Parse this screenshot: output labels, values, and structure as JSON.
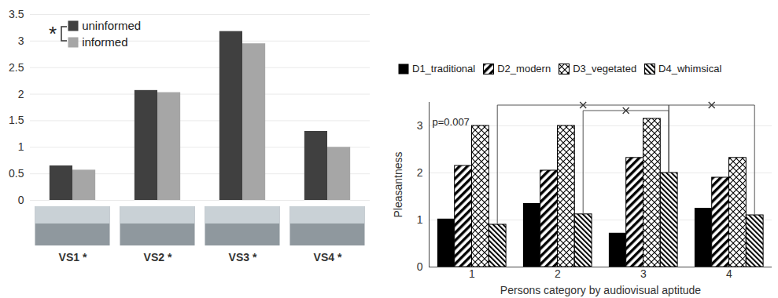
{
  "chart_data": [
    {
      "type": "bar",
      "categories": [
        "VS1 *",
        "VS2 *",
        "VS3 *",
        "VS4 *"
      ],
      "series": [
        {
          "name": "uninformed",
          "color": "#404040",
          "values": [
            0.65,
            2.07,
            3.18,
            1.3
          ]
        },
        {
          "name": "informed",
          "color": "#a6a6a6",
          "values": [
            0.57,
            2.03,
            2.95,
            1.0
          ]
        }
      ],
      "ylim": [
        0,
        3.5
      ],
      "yticks": [
        0,
        0.5,
        1,
        1.5,
        2,
        2.5,
        3,
        3.5
      ],
      "grid": true,
      "legend": "upper left",
      "annotations": [
        "*"
      ]
    },
    {
      "type": "bar",
      "x_label": "Persons category by audiovisual aptitude",
      "y_label": "Pleasantness",
      "categories": [
        "1",
        "2",
        "3",
        "4"
      ],
      "series": [
        {
          "name": "D1_traditional",
          "color": "#000000",
          "values": [
            1.02,
            1.35,
            0.72,
            1.25
          ]
        },
        {
          "name": "D2_modern",
          "color": "#000000",
          "values": [
            2.15,
            2.05,
            2.32,
            1.9
          ]
        },
        {
          "name": "D3_vegetated",
          "color": "#000000",
          "values": [
            3.0,
            3.0,
            3.15,
            2.32
          ]
        },
        {
          "name": "D4_whimsical",
          "color": "#000000",
          "values": [
            0.9,
            1.12,
            2.0,
            1.1
          ]
        }
      ],
      "ylim": [
        0,
        3.5
      ],
      "yticks": [
        0,
        1,
        2,
        3
      ],
      "grid": true,
      "legend": "top",
      "annotations": [
        "p=0.007"
      ],
      "comparisons": [
        {
          "series": "D4_whimsical",
          "categories": [
            "1",
            "3"
          ]
        },
        {
          "series": "D4_whimsical",
          "categories": [
            "2",
            "3"
          ]
        },
        {
          "series": "D4_whimsical",
          "categories": [
            "3",
            "4"
          ]
        }
      ]
    }
  ]
}
